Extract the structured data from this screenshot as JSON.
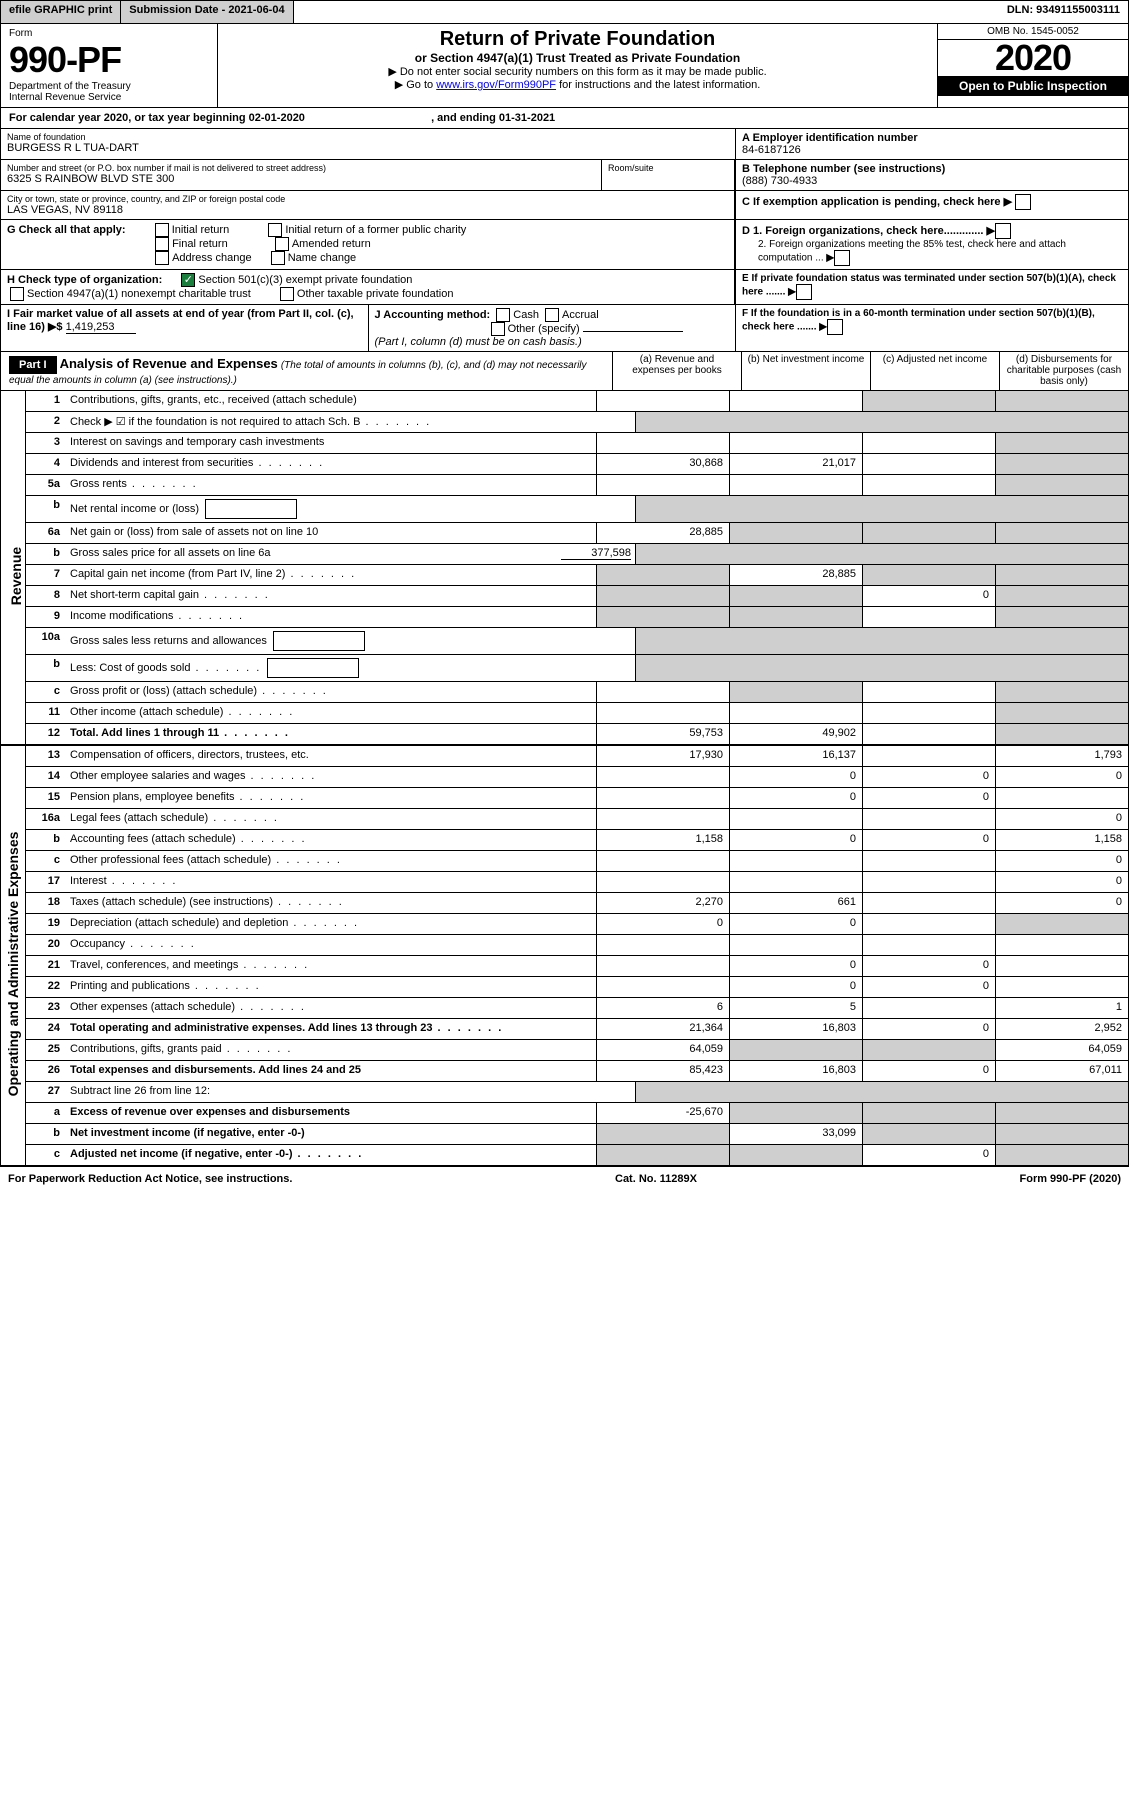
{
  "topbar": {
    "efile": "efile GRAPHIC print",
    "submission_label": "Submission Date - 2021-06-04",
    "dln": "DLN: 93491155003111"
  },
  "header": {
    "form_label": "Form",
    "form_number": "990-PF",
    "dept": "Department of the Treasury",
    "irs": "Internal Revenue Service",
    "title": "Return of Private Foundation",
    "subtitle": "or Section 4947(a)(1) Trust Treated as Private Foundation",
    "instr1": "▶ Do not enter social security numbers on this form as it may be made public.",
    "instr2_pre": "▶ Go to ",
    "instr2_link": "www.irs.gov/Form990PF",
    "instr2_post": " for instructions and the latest information.",
    "omb": "OMB No. 1545-0052",
    "year": "2020",
    "open": "Open to Public Inspection"
  },
  "calendar": {
    "text_a": "For calendar year 2020, or tax year beginning ",
    "begin": "02-01-2020",
    "text_b": ", and ending ",
    "end": "01-31-2021"
  },
  "name": {
    "label": "Name of foundation",
    "value": "BURGESS R L TUA-DART",
    "addr_label": "Number and street (or P.O. box number if mail is not delivered to street address)",
    "addr": "6325 S RAINBOW BLVD STE 300",
    "room_label": "Room/suite",
    "csz_label": "City or town, state or province, country, and ZIP or foreign postal code",
    "csz": "LAS VEGAS, NV  89118"
  },
  "ein": {
    "a_label": "A Employer identification number",
    "a_val": "84-6187126",
    "b_label": "B Telephone number (see instructions)",
    "b_val": "(888) 730-4933",
    "c_label": "C If exemption application is pending, check here",
    "d1": "D 1. Foreign organizations, check here.............",
    "d2": "2. Foreign organizations meeting the 85% test, check here and attach computation ...",
    "e": "E  If private foundation status was terminated under section 507(b)(1)(A), check here .......",
    "f": "F  If the foundation is in a 60-month termination under section 507(b)(1)(B), check here ......."
  },
  "g": {
    "label": "G Check all that apply:",
    "initial": "Initial return",
    "final": "Final return",
    "address": "Address change",
    "initial_former": "Initial return of a former public charity",
    "amended": "Amended return",
    "name_change": "Name change"
  },
  "h": {
    "label": "H Check type of organization:",
    "c3": "Section 501(c)(3) exempt private foundation",
    "s4947": "Section 4947(a)(1) nonexempt charitable trust",
    "other_tax": "Other taxable private foundation"
  },
  "i": {
    "label": "I Fair market value of all assets at end of year (from Part II, col. (c), line 16) ▶$ ",
    "value": "1,419,253"
  },
  "j": {
    "label": "J Accounting method:",
    "cash": "Cash",
    "accrual": "Accrual",
    "other": "Other (specify)",
    "note": "(Part I, column (d) must be on cash basis.)"
  },
  "part1": {
    "label": "Part I",
    "title": "Analysis of Revenue and Expenses",
    "title_note": " (The total of amounts in columns (b), (c), and (d) may not necessarily equal the amounts in column (a) (see instructions).)",
    "cols": {
      "a": "(a)   Revenue and expenses per books",
      "b": "(b)   Net investment income",
      "c": "(c)   Adjusted net income",
      "d": "(d)   Disbursements for charitable purposes (cash basis only)"
    }
  },
  "side": {
    "revenue": "Revenue",
    "expenses": "Operating and Administrative Expenses"
  },
  "lines": {
    "1": {
      "n": "1",
      "t": "Contributions, gifts, grants, etc., received (attach schedule)",
      "a": "",
      "b": "",
      "c": "",
      "d": "",
      "shade_d": true,
      "shade_c": true
    },
    "2": {
      "n": "2",
      "t": "Check ▶ ☑ if the foundation is not required to attach Sch. B",
      "dots": true,
      "noval": true
    },
    "3": {
      "n": "3",
      "t": "Interest on savings and temporary cash investments",
      "a": "",
      "b": "",
      "c": "",
      "d": "",
      "shade_d": true
    },
    "4": {
      "n": "4",
      "t": "Dividends and interest from securities",
      "dots": true,
      "a": "30,868",
      "b": "21,017",
      "c": "",
      "d": "",
      "shade_d": true
    },
    "5a": {
      "n": "5a",
      "t": "Gross rents",
      "dots": true,
      "a": "",
      "b": "",
      "c": "",
      "d": "",
      "shade_d": true
    },
    "5b": {
      "n": "b",
      "t": "Net rental income or (loss)",
      "box": true,
      "noval": true
    },
    "6a": {
      "n": "6a",
      "t": "Net gain or (loss) from sale of assets not on line 10",
      "a": "28,885",
      "b": "",
      "c": "",
      "d": "",
      "shade_b": true,
      "shade_c": true,
      "shade_d": true
    },
    "6b": {
      "n": "b",
      "t": "Gross sales price for all assets on line 6a",
      "inline_val": "377,598",
      "noval": true
    },
    "7": {
      "n": "7",
      "t": "Capital gain net income (from Part IV, line 2)",
      "dots": true,
      "a": "",
      "b": "28,885",
      "c": "",
      "d": "",
      "shade_a": true,
      "shade_c": true,
      "shade_d": true
    },
    "8": {
      "n": "8",
      "t": "Net short-term capital gain",
      "dots": true,
      "a": "",
      "b": "",
      "c": "0",
      "d": "",
      "shade_a": true,
      "shade_b": true,
      "shade_d": true
    },
    "9": {
      "n": "9",
      "t": "Income modifications",
      "dots": true,
      "a": "",
      "b": "",
      "c": "",
      "d": "",
      "shade_a": true,
      "shade_b": true,
      "shade_d": true
    },
    "10a": {
      "n": "10a",
      "t": "Gross sales less returns and allowances",
      "box": true,
      "noval": true
    },
    "10b": {
      "n": "b",
      "t": "Less: Cost of goods sold",
      "dots": true,
      "box": true,
      "noval": true
    },
    "10c": {
      "n": "c",
      "t": "Gross profit or (loss) (attach schedule)",
      "dots": true,
      "a": "",
      "b": "",
      "c": "",
      "d": "",
      "shade_b": true,
      "shade_d": true
    },
    "11": {
      "n": "11",
      "t": "Other income (attach schedule)",
      "dots": true,
      "a": "",
      "b": "",
      "c": "",
      "d": "",
      "shade_d": true
    },
    "12": {
      "n": "12",
      "t": "Total. Add lines 1 through 11",
      "dots": true,
      "bold": true,
      "a": "59,753",
      "b": "49,902",
      "c": "",
      "d": "",
      "shade_d": true
    },
    "13": {
      "n": "13",
      "t": "Compensation of officers, directors, trustees, etc.",
      "a": "17,930",
      "b": "16,137",
      "c": "",
      "d": "1,793"
    },
    "14": {
      "n": "14",
      "t": "Other employee salaries and wages",
      "dots": true,
      "a": "",
      "b": "0",
      "c": "0",
      "d": "0"
    },
    "15": {
      "n": "15",
      "t": "Pension plans, employee benefits",
      "dots": true,
      "a": "",
      "b": "0",
      "c": "0",
      "d": ""
    },
    "16a": {
      "n": "16a",
      "t": "Legal fees (attach schedule)",
      "dots": true,
      "a": "",
      "b": "",
      "c": "",
      "d": "0"
    },
    "16b": {
      "n": "b",
      "t": "Accounting fees (attach schedule)",
      "dots": true,
      "a": "1,158",
      "b": "0",
      "c": "0",
      "d": "1,158"
    },
    "16c": {
      "n": "c",
      "t": "Other professional fees (attach schedule)",
      "dots": true,
      "a": "",
      "b": "",
      "c": "",
      "d": "0"
    },
    "17": {
      "n": "17",
      "t": "Interest",
      "dots": true,
      "a": "",
      "b": "",
      "c": "",
      "d": "0"
    },
    "18": {
      "n": "18",
      "t": "Taxes (attach schedule) (see instructions)",
      "dots": true,
      "a": "2,270",
      "b": "661",
      "c": "",
      "d": "0"
    },
    "19": {
      "n": "19",
      "t": "Depreciation (attach schedule) and depletion",
      "dots": true,
      "a": "0",
      "b": "0",
      "c": "",
      "d": "",
      "shade_d": true
    },
    "20": {
      "n": "20",
      "t": "Occupancy",
      "dots": true,
      "a": "",
      "b": "",
      "c": "",
      "d": ""
    },
    "21": {
      "n": "21",
      "t": "Travel, conferences, and meetings",
      "dots": true,
      "a": "",
      "b": "0",
      "c": "0",
      "d": ""
    },
    "22": {
      "n": "22",
      "t": "Printing and publications",
      "dots": true,
      "a": "",
      "b": "0",
      "c": "0",
      "d": ""
    },
    "23": {
      "n": "23",
      "t": "Other expenses (attach schedule)",
      "dots": true,
      "a": "6",
      "b": "5",
      "c": "",
      "d": "1"
    },
    "24": {
      "n": "24",
      "t": "Total operating and administrative expenses. Add lines 13 through 23",
      "dots": true,
      "bold": true,
      "a": "21,364",
      "b": "16,803",
      "c": "0",
      "d": "2,952"
    },
    "25": {
      "n": "25",
      "t": "Contributions, gifts, grants paid",
      "dots": true,
      "a": "64,059",
      "b": "",
      "c": "",
      "d": "64,059",
      "shade_b": true,
      "shade_c": true
    },
    "26": {
      "n": "26",
      "t": "Total expenses and disbursements. Add lines 24 and 25",
      "bold": true,
      "a": "85,423",
      "b": "16,803",
      "c": "0",
      "d": "67,011"
    },
    "27": {
      "n": "27",
      "t": "Subtract line 26 from line 12:",
      "noval": true,
      "shade_all": true
    },
    "27a": {
      "n": "a",
      "t": "Excess of revenue over expenses and disbursements",
      "bold": true,
      "a": "-25,670",
      "b": "",
      "c": "",
      "d": "",
      "shade_b": true,
      "shade_c": true,
      "shade_d": true
    },
    "27b": {
      "n": "b",
      "t": "Net investment income (if negative, enter -0-)",
      "bold": true,
      "a": "",
      "b": "33,099",
      "c": "",
      "d": "",
      "shade_a": true,
      "shade_c": true,
      "shade_d": true
    },
    "27c": {
      "n": "c",
      "t": "Adjusted net income (if negative, enter -0-)",
      "dots": true,
      "bold": true,
      "a": "",
      "b": "",
      "c": "0",
      "d": "",
      "shade_a": true,
      "shade_b": true,
      "shade_d": true
    }
  },
  "line_order_rev": [
    "1",
    "2",
    "3",
    "4",
    "5a",
    "5b",
    "6a",
    "6b",
    "7",
    "8",
    "9",
    "10a",
    "10b",
    "10c",
    "11",
    "12"
  ],
  "line_order_exp": [
    "13",
    "14",
    "15",
    "16a",
    "16b",
    "16c",
    "17",
    "18",
    "19",
    "20",
    "21",
    "22",
    "23",
    "24",
    "25",
    "26",
    "27",
    "27a",
    "27b",
    "27c"
  ],
  "check_green": "✓",
  "footer": {
    "left": "For Paperwork Reduction Act Notice, see instructions.",
    "mid": "Cat. No. 11289X",
    "right": "Form 990-PF (2020)"
  }
}
